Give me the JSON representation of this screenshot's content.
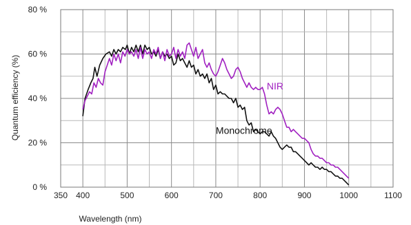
{
  "chart_data": {
    "type": "line",
    "xlabel": "Wavelength (nm)",
    "ylabel": "Quantum efficiency (%)",
    "xlim": [
      350,
      1100
    ],
    "ylim": [
      0,
      80
    ],
    "x_ticks": [
      350,
      400,
      500,
      600,
      700,
      800,
      900,
      1000,
      1100
    ],
    "x_tick_labels": [
      "350",
      "400",
      "500",
      "600",
      "700",
      "800",
      "900",
      "1000",
      "1100"
    ],
    "y_ticks": [
      0,
      20,
      40,
      60,
      80
    ],
    "y_tick_labels": [
      "0 %",
      "20 %",
      "40 %",
      "60 %",
      "80 %"
    ],
    "grid": true,
    "series": [
      {
        "name": "Monochrome",
        "color": "#111111",
        "points": [
          [
            400,
            32
          ],
          [
            405,
            40
          ],
          [
            412,
            44
          ],
          [
            418,
            47
          ],
          [
            423,
            49
          ],
          [
            427,
            54
          ],
          [
            432,
            50
          ],
          [
            438,
            55
          ],
          [
            445,
            58
          ],
          [
            452,
            60
          ],
          [
            460,
            61
          ],
          [
            465,
            59
          ],
          [
            470,
            62
          ],
          [
            475,
            60
          ],
          [
            480,
            62
          ],
          [
            485,
            61
          ],
          [
            490,
            63
          ],
          [
            496,
            62
          ],
          [
            500,
            64
          ],
          [
            505,
            60
          ],
          [
            510,
            63
          ],
          [
            515,
            61
          ],
          [
            520,
            64
          ],
          [
            525,
            61
          ],
          [
            530,
            64
          ],
          [
            535,
            60
          ],
          [
            540,
            64
          ],
          [
            545,
            62
          ],
          [
            550,
            63
          ],
          [
            555,
            60
          ],
          [
            560,
            61
          ],
          [
            565,
            59
          ],
          [
            570,
            62
          ],
          [
            575,
            58
          ],
          [
            580,
            61
          ],
          [
            585,
            59
          ],
          [
            590,
            60
          ],
          [
            595,
            58
          ],
          [
            600,
            59
          ],
          [
            605,
            55
          ],
          [
            610,
            56
          ],
          [
            615,
            60
          ],
          [
            620,
            57
          ],
          [
            625,
            58
          ],
          [
            630,
            56
          ],
          [
            635,
            54
          ],
          [
            640,
            57
          ],
          [
            645,
            54
          ],
          [
            650,
            55
          ],
          [
            655,
            51
          ],
          [
            660,
            53
          ],
          [
            665,
            50
          ],
          [
            670,
            51
          ],
          [
            675,
            49
          ],
          [
            680,
            51
          ],
          [
            685,
            47
          ],
          [
            690,
            49
          ],
          [
            695,
            44
          ],
          [
            700,
            46
          ],
          [
            705,
            42
          ],
          [
            710,
            43
          ],
          [
            715,
            42
          ],
          [
            720,
            42
          ],
          [
            725,
            41
          ],
          [
            730,
            40
          ],
          [
            735,
            40
          ],
          [
            740,
            38
          ],
          [
            745,
            40
          ],
          [
            750,
            36
          ],
          [
            755,
            37
          ],
          [
            760,
            35
          ],
          [
            765,
            36
          ],
          [
            770,
            30
          ],
          [
            775,
            28
          ],
          [
            780,
            29
          ],
          [
            785,
            25
          ],
          [
            790,
            26
          ],
          [
            795,
            25
          ],
          [
            800,
            24
          ],
          [
            805,
            25
          ],
          [
            810,
            25
          ],
          [
            815,
            24
          ],
          [
            820,
            23
          ],
          [
            825,
            25
          ],
          [
            830,
            23
          ],
          [
            835,
            22
          ],
          [
            840,
            20
          ],
          [
            845,
            18
          ],
          [
            850,
            17
          ],
          [
            855,
            18
          ],
          [
            860,
            19
          ],
          [
            865,
            18
          ],
          [
            870,
            18
          ],
          [
            875,
            16
          ],
          [
            880,
            16
          ],
          [
            885,
            15
          ],
          [
            890,
            14
          ],
          [
            895,
            13
          ],
          [
            900,
            12
          ],
          [
            905,
            11
          ],
          [
            910,
            10
          ],
          [
            915,
            11
          ],
          [
            920,
            10
          ],
          [
            925,
            9
          ],
          [
            930,
            9
          ],
          [
            935,
            8
          ],
          [
            940,
            9
          ],
          [
            945,
            8
          ],
          [
            950,
            8
          ],
          [
            955,
            7
          ],
          [
            960,
            7
          ],
          [
            965,
            6
          ],
          [
            970,
            5
          ],
          [
            975,
            5
          ],
          [
            980,
            4
          ],
          [
            985,
            4
          ],
          [
            990,
            3
          ],
          [
            995,
            2
          ],
          [
            1000,
            1
          ]
        ]
      },
      {
        "name": "NIR",
        "color": "#a020c0",
        "points": [
          [
            400,
            35
          ],
          [
            405,
            39
          ],
          [
            410,
            41
          ],
          [
            415,
            43
          ],
          [
            420,
            42
          ],
          [
            425,
            47
          ],
          [
            430,
            45
          ],
          [
            435,
            49
          ],
          [
            440,
            47
          ],
          [
            445,
            46
          ],
          [
            450,
            52
          ],
          [
            455,
            55
          ],
          [
            460,
            58
          ],
          [
            465,
            55
          ],
          [
            470,
            60
          ],
          [
            475,
            57
          ],
          [
            480,
            60
          ],
          [
            485,
            56
          ],
          [
            490,
            61
          ],
          [
            495,
            59
          ],
          [
            500,
            62
          ],
          [
            505,
            60
          ],
          [
            510,
            61
          ],
          [
            515,
            59
          ],
          [
            520,
            62
          ],
          [
            525,
            58
          ],
          [
            530,
            63
          ],
          [
            535,
            58
          ],
          [
            540,
            62
          ],
          [
            545,
            60
          ],
          [
            550,
            61
          ],
          [
            555,
            58
          ],
          [
            560,
            62
          ],
          [
            565,
            60
          ],
          [
            570,
            63
          ],
          [
            575,
            58
          ],
          [
            580,
            61
          ],
          [
            585,
            57
          ],
          [
            590,
            62
          ],
          [
            595,
            59
          ],
          [
            600,
            60
          ],
          [
            605,
            63
          ],
          [
            610,
            58
          ],
          [
            615,
            62
          ],
          [
            620,
            59
          ],
          [
            625,
            61
          ],
          [
            630,
            58
          ],
          [
            635,
            64
          ],
          [
            640,
            65
          ],
          [
            645,
            62
          ],
          [
            650,
            59
          ],
          [
            655,
            63
          ],
          [
            660,
            58
          ],
          [
            665,
            60
          ],
          [
            670,
            62
          ],
          [
            675,
            56
          ],
          [
            680,
            54
          ],
          [
            685,
            56
          ],
          [
            690,
            53
          ],
          [
            695,
            51
          ],
          [
            700,
            50
          ],
          [
            705,
            52
          ],
          [
            710,
            55
          ],
          [
            715,
            58
          ],
          [
            720,
            56
          ],
          [
            725,
            53
          ],
          [
            730,
            51
          ],
          [
            735,
            49
          ],
          [
            740,
            50
          ],
          [
            745,
            53
          ],
          [
            750,
            54
          ],
          [
            755,
            52
          ],
          [
            760,
            49
          ],
          [
            765,
            47
          ],
          [
            770,
            45
          ],
          [
            775,
            47
          ],
          [
            780,
            45
          ],
          [
            785,
            44
          ],
          [
            790,
            45
          ],
          [
            795,
            44
          ],
          [
            800,
            44
          ],
          [
            805,
            45
          ],
          [
            810,
            42
          ],
          [
            815,
            37
          ],
          [
            820,
            33
          ],
          [
            825,
            34
          ],
          [
            830,
            33
          ],
          [
            835,
            35
          ],
          [
            840,
            36
          ],
          [
            845,
            35
          ],
          [
            850,
            33
          ],
          [
            855,
            30
          ],
          [
            860,
            27
          ],
          [
            865,
            27
          ],
          [
            870,
            25
          ],
          [
            875,
            26
          ],
          [
            880,
            25
          ],
          [
            885,
            24
          ],
          [
            890,
            23
          ],
          [
            895,
            22
          ],
          [
            900,
            22
          ],
          [
            905,
            21
          ],
          [
            910,
            20
          ],
          [
            915,
            17
          ],
          [
            920,
            15
          ],
          [
            925,
            14
          ],
          [
            930,
            14
          ],
          [
            935,
            13
          ],
          [
            940,
            13
          ],
          [
            945,
            12
          ],
          [
            950,
            11
          ],
          [
            955,
            11
          ],
          [
            960,
            10
          ],
          [
            965,
            10
          ],
          [
            970,
            9
          ],
          [
            975,
            9
          ],
          [
            980,
            8
          ],
          [
            985,
            7
          ],
          [
            990,
            6
          ],
          [
            995,
            5
          ],
          [
            1000,
            4
          ]
        ]
      }
    ],
    "annotations": [
      {
        "text": "NIR",
        "series": "NIR",
        "x": 815,
        "y": 44
      },
      {
        "text": "Monochrome",
        "series": "Monochrome",
        "x": 700,
        "y": 24
      }
    ]
  }
}
